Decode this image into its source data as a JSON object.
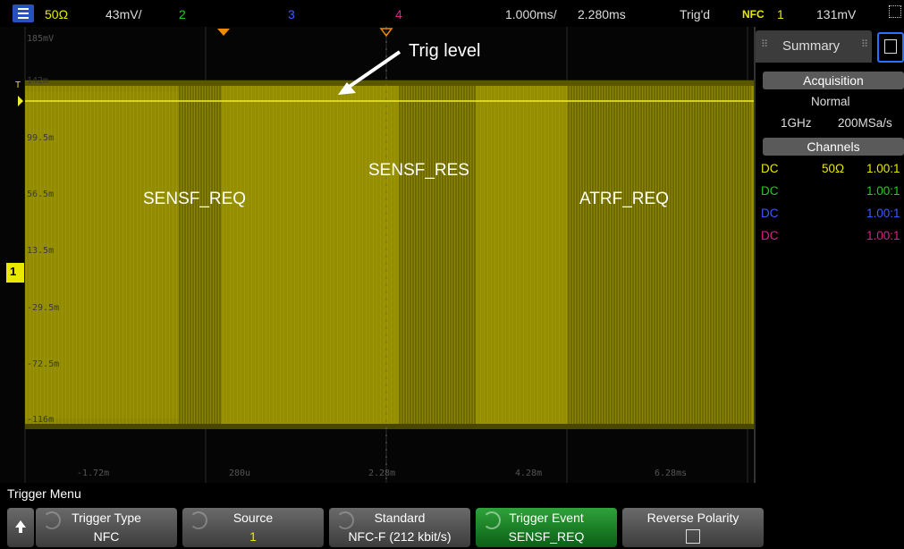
{
  "topbar": {
    "impedance": "50Ω",
    "ch1_scale": "43mV/",
    "ch2": "2",
    "ch3": "3",
    "ch4": "4",
    "time_scale": "1.000ms/",
    "delay": "2.280ms",
    "trig_status": "Trig'd",
    "trig_type": "NFC",
    "trig_source": "1",
    "trig_level": "131mV"
  },
  "plot": {
    "y_labels": [
      "185mV",
      "142m",
      "99.5m",
      "56.5m",
      "13.5m",
      "-29.5m",
      "-72.5m",
      "-116m"
    ],
    "x_labels": [
      "-1.72m",
      "280u",
      "2.28m",
      "4.28m",
      "6.28ms"
    ],
    "annotations": {
      "trig_level": "Trig level",
      "sensf_req": "SENSF_REQ",
      "sensf_res": "SENSF_RES",
      "atrf_req": "ATRF_REQ"
    },
    "trigger_marker": "T",
    "channel_marker": "1"
  },
  "right_panel": {
    "tab_summary": "Summary",
    "acquisition_header": "Acquisition",
    "acq_mode": "Normal",
    "bandwidth": "1GHz",
    "sample_rate": "200MSa/s",
    "channels_header": "Channels",
    "channels": [
      {
        "coupling": "DC",
        "impedance": "50Ω",
        "probe": "1.00:1",
        "color": "#e8e800"
      },
      {
        "coupling": "DC",
        "impedance": "",
        "probe": "1.00:1",
        "color": "#22cc22"
      },
      {
        "coupling": "DC",
        "impedance": "",
        "probe": "1.00:1",
        "color": "#3a5cff"
      },
      {
        "coupling": "DC",
        "impedance": "",
        "probe": "1.00:1",
        "color": "#e0208a"
      }
    ]
  },
  "bottom": {
    "menu_title": "Trigger Menu",
    "softkeys": [
      {
        "label": "Trigger Type",
        "value": "NFC"
      },
      {
        "label": "Source",
        "value": "1"
      },
      {
        "label": "Standard",
        "value": "NFC-F (212 kbit/s)"
      },
      {
        "label": "Trigger Event",
        "value": "SENSF_REQ"
      },
      {
        "label": "Reverse Polarity",
        "value": ""
      }
    ]
  },
  "colors": {
    "ch1": "#e8e800",
    "ch2": "#22cc22",
    "ch3": "#3a5cff",
    "ch4": "#e0208a",
    "waveform": "#8a8400",
    "active_softkey": "#1f8a2b"
  }
}
